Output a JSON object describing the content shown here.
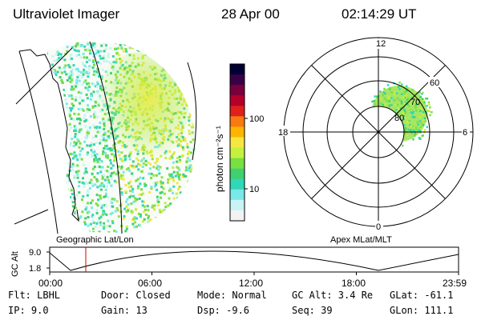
{
  "header": {
    "title": "Ultraviolet Imager",
    "date": "28 Apr 00",
    "time": "02:14:29 UT"
  },
  "colorbar": {
    "unit_label": "photon cm⁻²s⁻¹",
    "ticks": [
      "100",
      "10"
    ],
    "colors": [
      "#000033",
      "#3a0046",
      "#7a003c",
      "#b5002a",
      "#e0201a",
      "#f87a10",
      "#ffb400",
      "#f6e640",
      "#c4f03e",
      "#78e040",
      "#40d070",
      "#30d8b8",
      "#7ae8e8",
      "#c8f4f4",
      "#f2f2f2"
    ]
  },
  "geo_panel": {
    "caption": "Geographic Lat/Lon"
  },
  "polar_panel": {
    "caption": "Apex MLat/MLT",
    "mlt_labels": {
      "top": "12",
      "left": "18",
      "right": "6",
      "bottom": "0"
    },
    "lat_labels": [
      "60",
      "70",
      "80"
    ]
  },
  "altitude_plot": {
    "ylabel": "GC Alt",
    "y_ticks": [
      "9.0",
      "1.8"
    ],
    "x_ticks": [
      "00:00",
      "06:00",
      "12:00",
      "18:00",
      "23:59"
    ],
    "marker_color": "#cc0000"
  },
  "info": {
    "filter": "Flt: LBHL",
    "ip": "IP:  9.0",
    "door": "Door: Closed",
    "gain": "Gain: 13",
    "mode": "Mode: Normal",
    "dsp": "Dsp:   -9.6",
    "gc_alt": "GC Alt: 3.4 Re",
    "seq": "Seq: 39",
    "glat": "GLat: -61.1",
    "glon": "GLon: 111.1"
  }
}
